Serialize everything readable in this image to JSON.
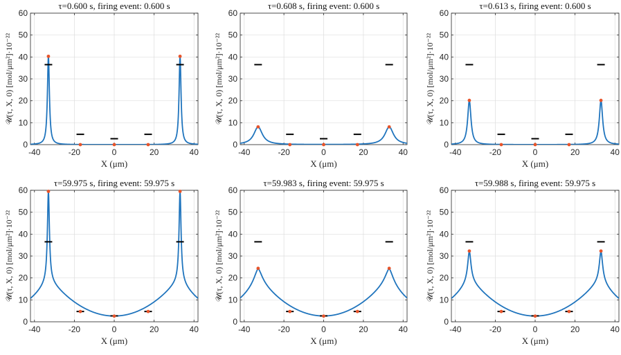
{
  "colors": {
    "curve": "#1f74bd",
    "marker": "#e8542a",
    "threshold": "#000000",
    "grid": "#dddddd",
    "axis": "#262626"
  },
  "chart_data": [
    {
      "type": "line",
      "title": "τ=0.600 s, firing event: 0.600 s",
      "xlabel": "X (μm)",
      "ylabel": "𝒰(τ, X, 0) [mol/μm²]·10⁻²²",
      "xlim": [
        -42,
        42
      ],
      "ylim": [
        0,
        60
      ],
      "xticks": [
        -40,
        -20,
        0,
        20,
        40
      ],
      "yticks": [
        0,
        10,
        20,
        30,
        40,
        50,
        60
      ],
      "xtick_labels": [
        "-40",
        "-20",
        "0",
        "20",
        "40"
      ],
      "ytick_labels": [
        "0",
        "10",
        "20",
        "30",
        "40",
        "50",
        "60"
      ],
      "nodes_x": [
        -33,
        -17,
        0,
        17,
        33
      ],
      "peak_values": [
        40.3,
        0,
        0,
        0,
        40.3
      ],
      "thresholds": [
        36.5,
        4.7,
        2.7,
        4.7,
        36.5
      ],
      "baseline": {
        "min": 0,
        "max": 0
      },
      "peak_halfwidth": 0.6
    },
    {
      "type": "line",
      "title": "τ=0.608 s, firing event: 0.600 s",
      "xlabel": "X (μm)",
      "ylabel": "𝒰(τ, X, 0) [mol/μm²]·10⁻²²",
      "xlim": [
        -42,
        42
      ],
      "ylim": [
        0,
        60
      ],
      "xticks": [
        -40,
        -20,
        0,
        20,
        40
      ],
      "yticks": [
        0,
        10,
        20,
        30,
        40,
        50,
        60
      ],
      "xtick_labels": [
        "-40",
        "-20",
        "0",
        "20",
        "40"
      ],
      "ytick_labels": [
        "0",
        "10",
        "20",
        "30",
        "40",
        "50",
        "60"
      ],
      "nodes_x": [
        -33,
        -17,
        0,
        17,
        33
      ],
      "peak_values": [
        8.1,
        0,
        0,
        0,
        8.1
      ],
      "thresholds": [
        36.5,
        4.7,
        2.7,
        4.7,
        36.5
      ],
      "baseline": {
        "min": 0,
        "max": 0
      },
      "peak_halfwidth": 2.6
    },
    {
      "type": "line",
      "title": "τ=0.613 s, firing event: 0.600 s",
      "xlabel": "X (μm)",
      "ylabel": "𝒰(τ, X, 0) [mol/μm²]·10⁻²²",
      "xlim": [
        -42,
        42
      ],
      "ylim": [
        0,
        60
      ],
      "xticks": [
        -40,
        -20,
        0,
        20,
        40
      ],
      "yticks": [
        0,
        10,
        20,
        30,
        40,
        50,
        60
      ],
      "xtick_labels": [
        "-40",
        "-20",
        "0",
        "20",
        "40"
      ],
      "ytick_labels": [
        "0",
        "10",
        "20",
        "30",
        "40",
        "50",
        "60"
      ],
      "nodes_x": [
        -33,
        -17,
        0,
        17,
        33
      ],
      "peak_values": [
        20.2,
        0,
        0,
        0,
        20.2
      ],
      "thresholds": [
        36.5,
        4.7,
        2.7,
        4.7,
        36.5
      ],
      "baseline": {
        "min": 0,
        "max": 0
      },
      "peak_halfwidth": 1.0
    },
    {
      "type": "line",
      "title": "τ=59.975 s, firing event: 59.975 s",
      "xlabel": "X (μm)",
      "ylabel": "𝒰(τ, X, 0) [mol/μm²]·10⁻²²",
      "xlim": [
        -42,
        42
      ],
      "ylim": [
        0,
        60
      ],
      "xticks": [
        -40,
        -20,
        0,
        20,
        40
      ],
      "yticks": [
        0,
        10,
        20,
        30,
        40,
        50,
        60
      ],
      "xtick_labels": [
        "-40",
        "-20",
        "0",
        "20",
        "40"
      ],
      "ytick_labels": [
        "0",
        "10",
        "20",
        "30",
        "40",
        "50",
        "60"
      ],
      "nodes_x": [
        -33,
        -17,
        0,
        17,
        33
      ],
      "peak_values": [
        59.5,
        4.7,
        2.6,
        4.7,
        59.5
      ],
      "thresholds": [
        36.5,
        4.7,
        2.7,
        4.7,
        36.5
      ],
      "baseline": {
        "min": 2.6,
        "max": 20
      },
      "peak_halfwidth": 0.6
    },
    {
      "type": "line",
      "title": "τ=59.983 s, firing event: 59.975 s",
      "xlabel": "X (μm)",
      "ylabel": "𝒰(τ, X, 0) [mol/μm²]·10⁻²²",
      "xlim": [
        -42,
        42
      ],
      "ylim": [
        0,
        60
      ],
      "xticks": [
        -40,
        -20,
        0,
        20,
        40
      ],
      "yticks": [
        0,
        10,
        20,
        30,
        40,
        50,
        60
      ],
      "xtick_labels": [
        "-40",
        "-20",
        "0",
        "20",
        "40"
      ],
      "ytick_labels": [
        "0",
        "10",
        "20",
        "30",
        "40",
        "50",
        "60"
      ],
      "nodes_x": [
        -33,
        -17,
        0,
        17,
        33
      ],
      "peak_values": [
        24.4,
        4.7,
        2.6,
        4.7,
        24.4
      ],
      "thresholds": [
        36.5,
        4.7,
        2.7,
        4.7,
        36.5
      ],
      "baseline": {
        "min": 2.6,
        "max": 20
      },
      "peak_halfwidth": 2.6
    },
    {
      "type": "line",
      "title": "τ=59.988 s, firing event: 59.975 s",
      "xlabel": "X (μm)",
      "ylabel": "𝒰(τ, X, 0) [mol/μm²]·10⁻²²",
      "xlim": [
        -42,
        42
      ],
      "ylim": [
        0,
        60
      ],
      "xticks": [
        -40,
        -20,
        0,
        20,
        40
      ],
      "yticks": [
        0,
        10,
        20,
        30,
        40,
        50,
        60
      ],
      "xtick_labels": [
        "-40",
        "-20",
        "0",
        "20",
        "40"
      ],
      "ytick_labels": [
        "0",
        "10",
        "20",
        "30",
        "40",
        "50",
        "60"
      ],
      "nodes_x": [
        -33,
        -17,
        0,
        17,
        33
      ],
      "peak_values": [
        32.3,
        4.7,
        2.6,
        4.7,
        32.3
      ],
      "thresholds": [
        36.5,
        4.7,
        2.7,
        4.7,
        36.5
      ],
      "baseline": {
        "min": 2.6,
        "max": 20
      },
      "peak_halfwidth": 1.0
    }
  ]
}
